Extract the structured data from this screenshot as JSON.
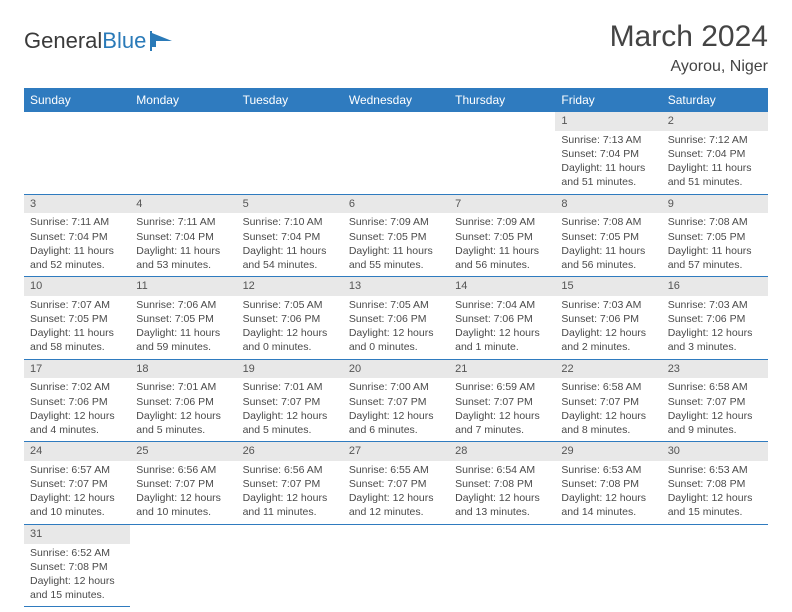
{
  "brand": {
    "name_part1": "General",
    "name_part2": "Blue"
  },
  "title": {
    "month": "March 2024",
    "location": "Ayorou, Niger"
  },
  "colors": {
    "header_bg": "#2f7bbf",
    "header_text": "#ffffff",
    "daynum_bg": "#e8e8e8",
    "rule": "#2f7bbf",
    "text": "#4a4a4a",
    "brand_blue": "#2a7ab8"
  },
  "typography": {
    "month_fontsize": 30,
    "location_fontsize": 16,
    "weekday_fontsize": 12,
    "cell_fontsize": 10.5
  },
  "weekdays": [
    "Sunday",
    "Monday",
    "Tuesday",
    "Wednesday",
    "Thursday",
    "Friday",
    "Saturday"
  ],
  "calendar": {
    "type": "month-grid",
    "first_weekday_index": 5,
    "rows": 6,
    "cols": 7,
    "days": [
      {
        "n": 1,
        "sunrise": "7:13 AM",
        "sunset": "7:04 PM",
        "daylight": "11 hours and 51 minutes."
      },
      {
        "n": 2,
        "sunrise": "7:12 AM",
        "sunset": "7:04 PM",
        "daylight": "11 hours and 51 minutes."
      },
      {
        "n": 3,
        "sunrise": "7:11 AM",
        "sunset": "7:04 PM",
        "daylight": "11 hours and 52 minutes."
      },
      {
        "n": 4,
        "sunrise": "7:11 AM",
        "sunset": "7:04 PM",
        "daylight": "11 hours and 53 minutes."
      },
      {
        "n": 5,
        "sunrise": "7:10 AM",
        "sunset": "7:04 PM",
        "daylight": "11 hours and 54 minutes."
      },
      {
        "n": 6,
        "sunrise": "7:09 AM",
        "sunset": "7:05 PM",
        "daylight": "11 hours and 55 minutes."
      },
      {
        "n": 7,
        "sunrise": "7:09 AM",
        "sunset": "7:05 PM",
        "daylight": "11 hours and 56 minutes."
      },
      {
        "n": 8,
        "sunrise": "7:08 AM",
        "sunset": "7:05 PM",
        "daylight": "11 hours and 56 minutes."
      },
      {
        "n": 9,
        "sunrise": "7:08 AM",
        "sunset": "7:05 PM",
        "daylight": "11 hours and 57 minutes."
      },
      {
        "n": 10,
        "sunrise": "7:07 AM",
        "sunset": "7:05 PM",
        "daylight": "11 hours and 58 minutes."
      },
      {
        "n": 11,
        "sunrise": "7:06 AM",
        "sunset": "7:05 PM",
        "daylight": "11 hours and 59 minutes."
      },
      {
        "n": 12,
        "sunrise": "7:05 AM",
        "sunset": "7:06 PM",
        "daylight": "12 hours and 0 minutes."
      },
      {
        "n": 13,
        "sunrise": "7:05 AM",
        "sunset": "7:06 PM",
        "daylight": "12 hours and 0 minutes."
      },
      {
        "n": 14,
        "sunrise": "7:04 AM",
        "sunset": "7:06 PM",
        "daylight": "12 hours and 1 minute."
      },
      {
        "n": 15,
        "sunrise": "7:03 AM",
        "sunset": "7:06 PM",
        "daylight": "12 hours and 2 minutes."
      },
      {
        "n": 16,
        "sunrise": "7:03 AM",
        "sunset": "7:06 PM",
        "daylight": "12 hours and 3 minutes."
      },
      {
        "n": 17,
        "sunrise": "7:02 AM",
        "sunset": "7:06 PM",
        "daylight": "12 hours and 4 minutes."
      },
      {
        "n": 18,
        "sunrise": "7:01 AM",
        "sunset": "7:06 PM",
        "daylight": "12 hours and 5 minutes."
      },
      {
        "n": 19,
        "sunrise": "7:01 AM",
        "sunset": "7:07 PM",
        "daylight": "12 hours and 5 minutes."
      },
      {
        "n": 20,
        "sunrise": "7:00 AM",
        "sunset": "7:07 PM",
        "daylight": "12 hours and 6 minutes."
      },
      {
        "n": 21,
        "sunrise": "6:59 AM",
        "sunset": "7:07 PM",
        "daylight": "12 hours and 7 minutes."
      },
      {
        "n": 22,
        "sunrise": "6:58 AM",
        "sunset": "7:07 PM",
        "daylight": "12 hours and 8 minutes."
      },
      {
        "n": 23,
        "sunrise": "6:58 AM",
        "sunset": "7:07 PM",
        "daylight": "12 hours and 9 minutes."
      },
      {
        "n": 24,
        "sunrise": "6:57 AM",
        "sunset": "7:07 PM",
        "daylight": "12 hours and 10 minutes."
      },
      {
        "n": 25,
        "sunrise": "6:56 AM",
        "sunset": "7:07 PM",
        "daylight": "12 hours and 10 minutes."
      },
      {
        "n": 26,
        "sunrise": "6:56 AM",
        "sunset": "7:07 PM",
        "daylight": "12 hours and 11 minutes."
      },
      {
        "n": 27,
        "sunrise": "6:55 AM",
        "sunset": "7:07 PM",
        "daylight": "12 hours and 12 minutes."
      },
      {
        "n": 28,
        "sunrise": "6:54 AM",
        "sunset": "7:08 PM",
        "daylight": "12 hours and 13 minutes."
      },
      {
        "n": 29,
        "sunrise": "6:53 AM",
        "sunset": "7:08 PM",
        "daylight": "12 hours and 14 minutes."
      },
      {
        "n": 30,
        "sunrise": "6:53 AM",
        "sunset": "7:08 PM",
        "daylight": "12 hours and 15 minutes."
      },
      {
        "n": 31,
        "sunrise": "6:52 AM",
        "sunset": "7:08 PM",
        "daylight": "12 hours and 15 minutes."
      }
    ],
    "labels": {
      "sunrise_prefix": "Sunrise: ",
      "sunset_prefix": "Sunset: ",
      "daylight_prefix": "Daylight: "
    }
  }
}
